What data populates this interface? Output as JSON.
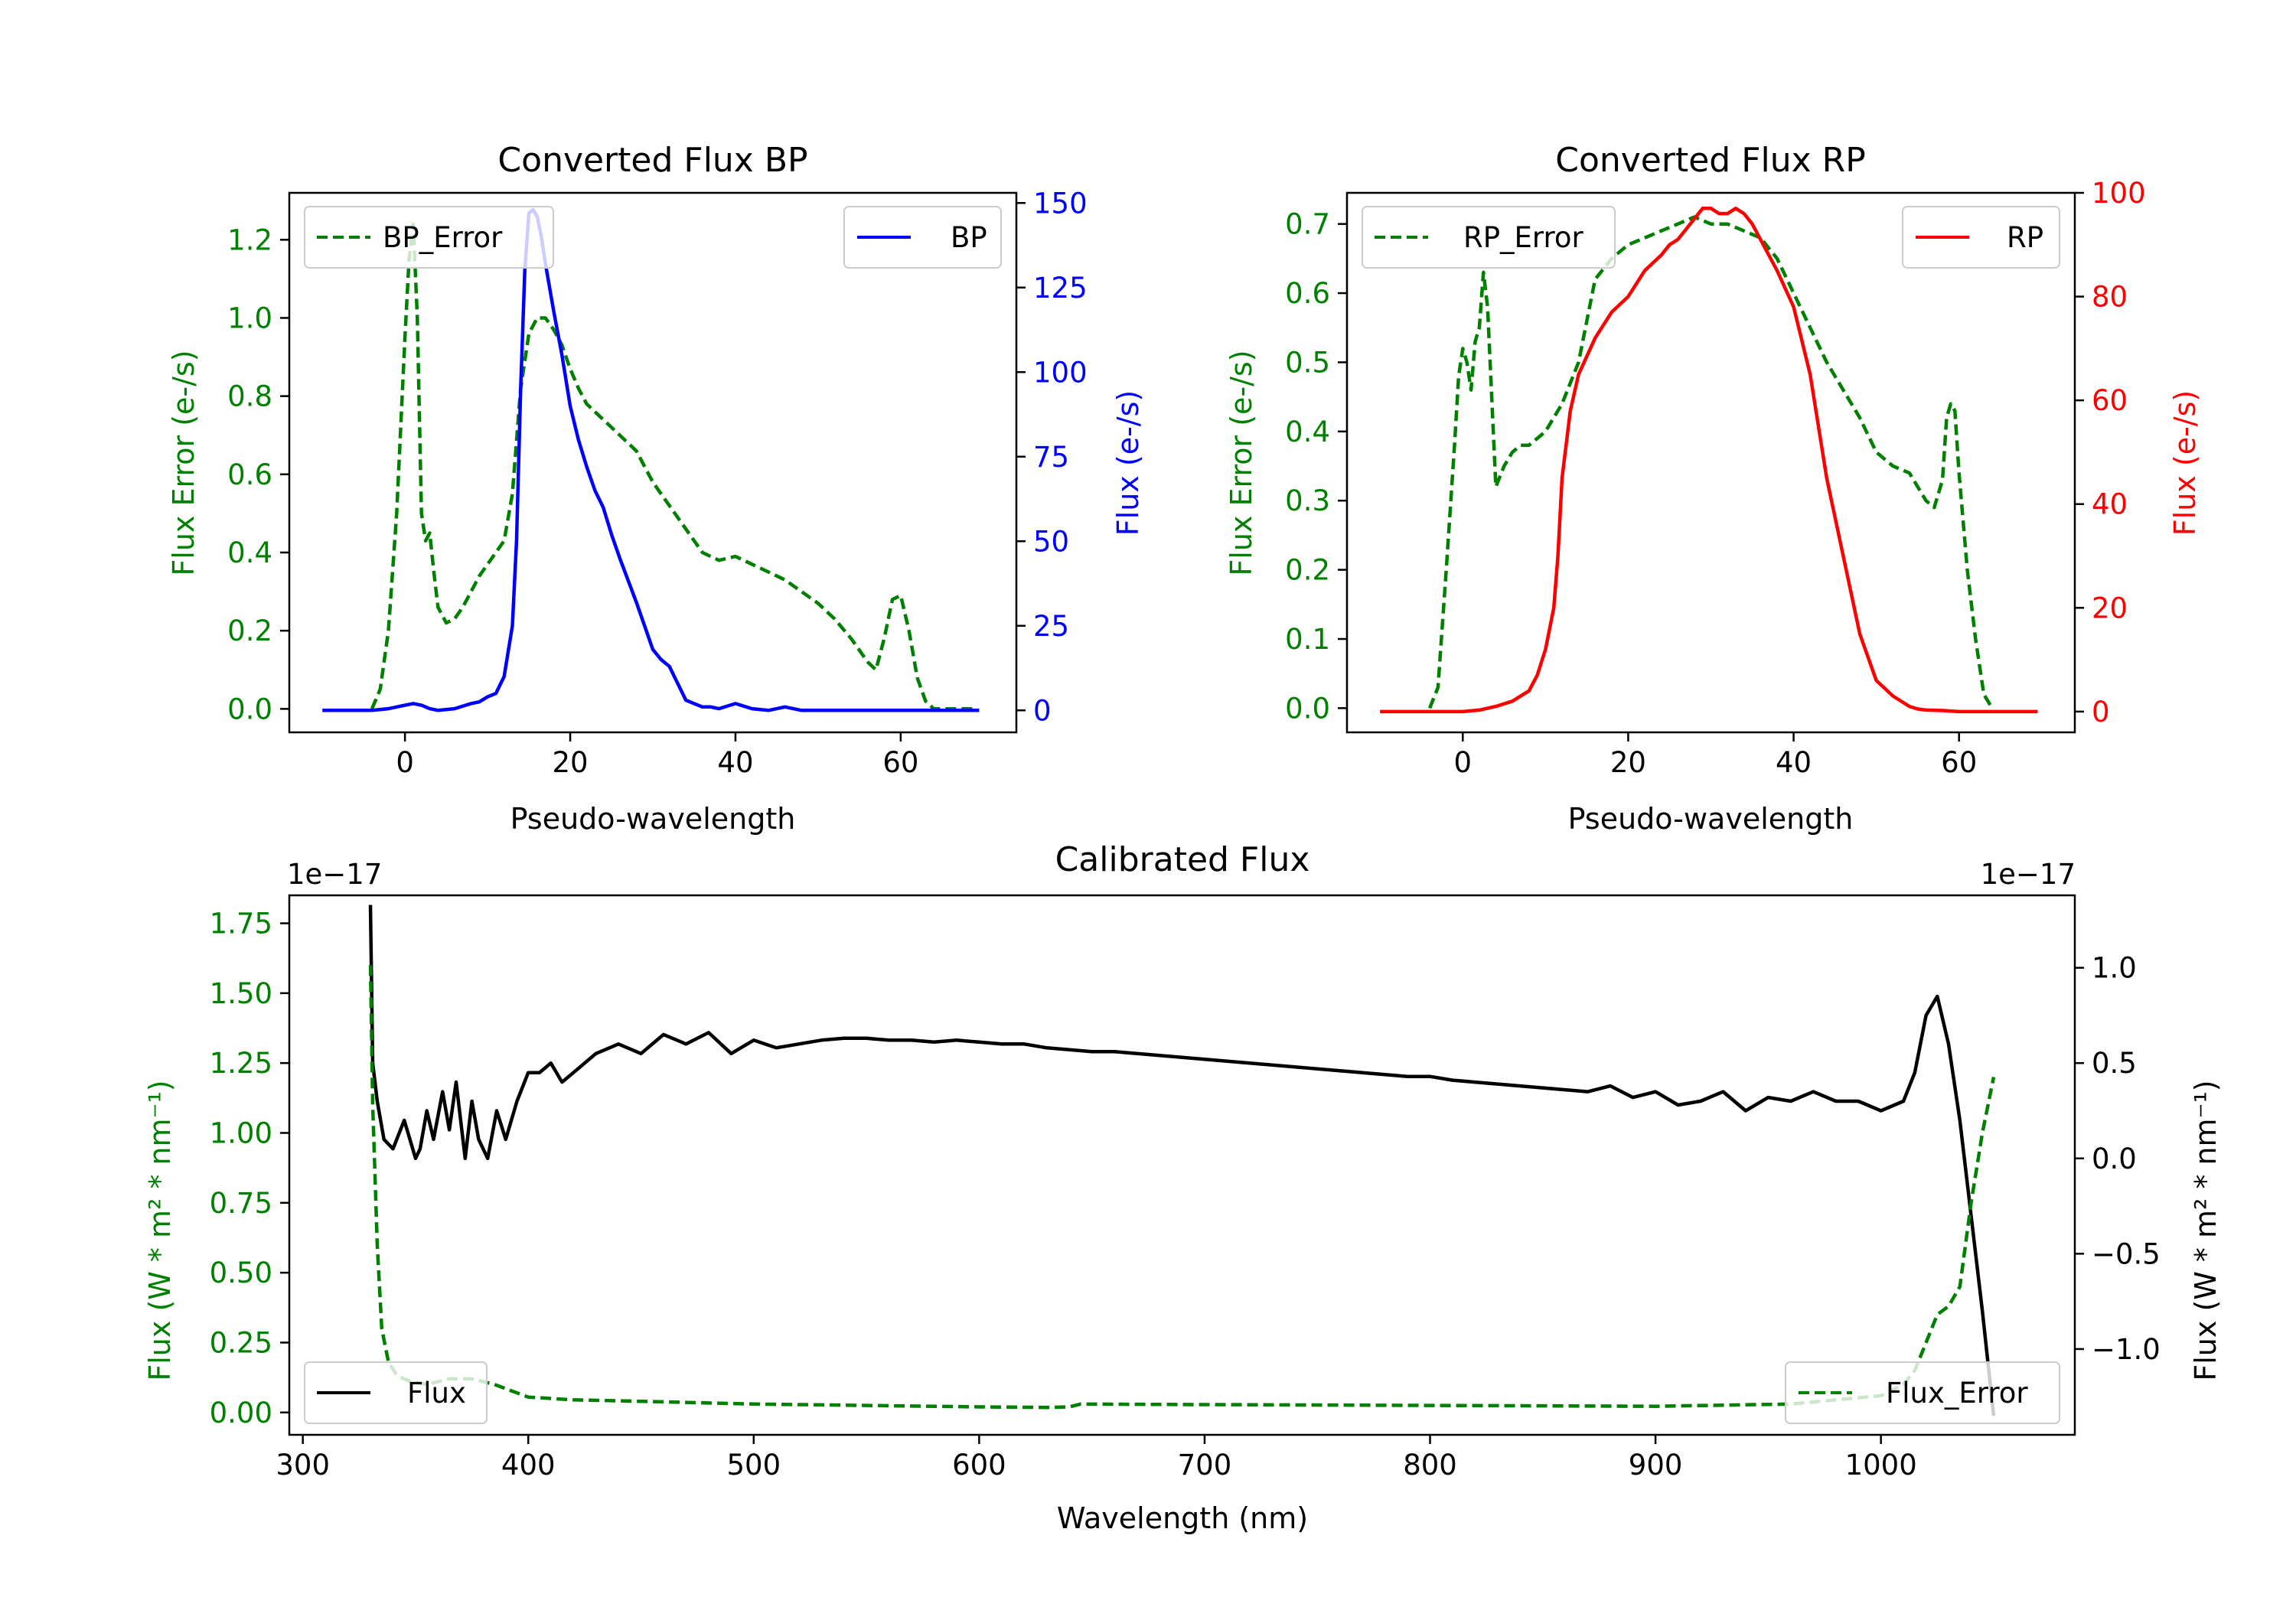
{
  "figure": {
    "background": "#ffffff"
  },
  "colors": {
    "error": "#008000",
    "bp": "#0000ff",
    "rp": "#ff0000",
    "flux": "#000000",
    "axis": "#000000"
  },
  "panels": {
    "bp": {
      "title": "Converted Flux BP",
      "xlabel": "Pseudo-wavelength",
      "ylabel_left": "Flux Error (e-/s)",
      "ylabel_right": "Flux (e-/s)",
      "legend_left": "BP_Error",
      "legend_right": "BP"
    },
    "rp": {
      "title": "Converted Flux RP",
      "xlabel": "Pseudo-wavelength",
      "ylabel_left": "Flux Error (e-/s)",
      "ylabel_right": "Flux (e-/s)",
      "legend_left": "RP_Error",
      "legend_right": "RP"
    },
    "cal": {
      "title": "Calibrated Flux",
      "xlabel": "Wavelength (nm)",
      "ylabel_left": "Flux (W * m² * nm⁻¹)",
      "ylabel_right": "Flux (W * m² * nm⁻¹)",
      "offset_left": "1e−17",
      "offset_right": "1e−17",
      "legend_left": "Flux",
      "legend_right": "Flux_Error"
    }
  },
  "chart_data": [
    {
      "type": "line",
      "id": "bp",
      "title": "Converted Flux BP",
      "xlabel": "Pseudo-wavelength",
      "ylabel": "Flux Error (e-/s)",
      "ylabel_right": "Flux (e-/s)",
      "xlim": [
        -14,
        74
      ],
      "ylim": [
        -0.06,
        1.32
      ],
      "ylim_right": [
        -6.5,
        153
      ],
      "xticks": [
        0,
        20,
        40,
        60
      ],
      "yticks": [
        0.0,
        0.2,
        0.4,
        0.6,
        0.8,
        1.0,
        1.2
      ],
      "yticks_right": [
        0,
        25,
        50,
        75,
        100,
        125,
        150
      ],
      "series": [
        {
          "name": "BP_Error",
          "axis": "left",
          "color": "#008000",
          "dashed": true,
          "x": [
            -4,
            -3,
            -2,
            -1,
            0,
            0.5,
            1,
            1.5,
            2,
            2.5,
            3,
            3.5,
            4,
            5,
            6,
            7,
            8,
            9,
            10,
            11,
            12,
            13,
            14,
            15,
            16,
            17,
            18,
            19,
            20,
            21,
            22,
            24,
            26,
            28,
            30,
            32,
            34,
            36,
            38,
            40,
            42,
            44,
            46,
            48,
            50,
            52,
            54,
            56,
            57,
            58,
            59,
            60,
            61,
            62,
            63,
            64,
            65,
            66,
            67,
            68,
            69
          ],
          "y": [
            0.0,
            0.05,
            0.2,
            0.5,
            0.95,
            1.15,
            1.24,
            1.0,
            0.5,
            0.43,
            0.45,
            0.35,
            0.26,
            0.22,
            0.23,
            0.26,
            0.3,
            0.34,
            0.37,
            0.4,
            0.43,
            0.55,
            0.82,
            0.96,
            1.0,
            1.0,
            0.97,
            0.93,
            0.87,
            0.82,
            0.78,
            0.74,
            0.7,
            0.66,
            0.58,
            0.52,
            0.46,
            0.4,
            0.38,
            0.39,
            0.37,
            0.35,
            0.33,
            0.3,
            0.27,
            0.23,
            0.18,
            0.12,
            0.1,
            0.18,
            0.28,
            0.29,
            0.2,
            0.08,
            0.02,
            0.0,
            0.0,
            0.0,
            0.0,
            0.0,
            0.0
          ]
        },
        {
          "name": "BP",
          "axis": "right",
          "color": "#0000ff",
          "dashed": false,
          "x": [
            -10,
            -6,
            -4,
            -2,
            0,
            1,
            2,
            3,
            4,
            6,
            8,
            9,
            10,
            11,
            12,
            13,
            13.5,
            14,
            14.5,
            15,
            15.5,
            16,
            16.5,
            17,
            18,
            19,
            20,
            21,
            22,
            23,
            24,
            25,
            26,
            28,
            30,
            31,
            32,
            33,
            34,
            35,
            36,
            37,
            38,
            40,
            42,
            44,
            46,
            48,
            50,
            55,
            60,
            65,
            69.5
          ],
          "y": [
            0,
            0,
            0,
            0.5,
            1.5,
            2,
            1.5,
            0.5,
            0,
            0.5,
            2,
            2.5,
            4,
            5,
            10,
            25,
            50,
            95,
            130,
            147,
            148,
            146,
            140,
            132,
            118,
            105,
            90,
            80,
            72,
            65,
            60,
            52,
            45,
            32,
            18,
            15,
            13,
            8,
            3,
            2,
            1,
            1,
            0.5,
            2,
            0.5,
            0,
            1,
            0,
            0,
            0,
            0,
            0,
            0
          ]
        }
      ]
    },
    {
      "type": "line",
      "id": "rp",
      "title": "Converted Flux RP",
      "xlabel": "Pseudo-wavelength",
      "ylabel": "Flux Error (e-/s)",
      "ylabel_right": "Flux (e-/s)",
      "xlim": [
        -14,
        74
      ],
      "ylim": [
        -0.035,
        0.745
      ],
      "ylim_right": [
        -4,
        100
      ],
      "xticks": [
        0,
        20,
        40,
        60
      ],
      "yticks": [
        0.0,
        0.1,
        0.2,
        0.3,
        0.4,
        0.5,
        0.6,
        0.7
      ],
      "yticks_right": [
        0,
        20,
        40,
        60,
        80,
        100
      ],
      "series": [
        {
          "name": "RP_Error",
          "axis": "left",
          "color": "#008000",
          "dashed": true,
          "x": [
            -4,
            -3,
            -2,
            -1,
            -0.5,
            0,
            0.5,
            1,
            1.5,
            2,
            2.5,
            3,
            3.5,
            4,
            5,
            6,
            7,
            8,
            9,
            10,
            12,
            14,
            16,
            18,
            20,
            22,
            24,
            26,
            28,
            30,
            32,
            34,
            36,
            38,
            40,
            42,
            44,
            46,
            48,
            50,
            52,
            54,
            55,
            56,
            57,
            58,
            58.5,
            59,
            59.5,
            60,
            61,
            62,
            63,
            63.5,
            64
          ],
          "y": [
            0.0,
            0.03,
            0.2,
            0.38,
            0.48,
            0.52,
            0.5,
            0.46,
            0.53,
            0.55,
            0.63,
            0.58,
            0.45,
            0.32,
            0.35,
            0.37,
            0.38,
            0.38,
            0.39,
            0.4,
            0.44,
            0.5,
            0.62,
            0.65,
            0.67,
            0.68,
            0.69,
            0.7,
            0.71,
            0.7,
            0.7,
            0.69,
            0.68,
            0.65,
            0.6,
            0.55,
            0.5,
            0.46,
            0.42,
            0.37,
            0.35,
            0.34,
            0.32,
            0.3,
            0.29,
            0.33,
            0.42,
            0.44,
            0.43,
            0.34,
            0.2,
            0.1,
            0.02,
            0.01,
            0.0
          ]
        },
        {
          "name": "RP",
          "axis": "right",
          "color": "#ff0000",
          "dashed": false,
          "x": [
            -10,
            -6,
            -4,
            -2,
            0,
            2,
            4,
            6,
            8,
            9,
            10,
            11,
            11.5,
            12,
            13,
            14,
            16,
            18,
            20,
            22,
            24,
            25,
            26,
            27,
            28,
            29,
            30,
            31,
            32,
            33,
            34,
            35,
            36,
            38,
            40,
            42,
            44,
            46,
            48,
            50,
            52,
            54,
            55,
            56,
            58,
            60,
            65,
            69.5
          ],
          "y": [
            0,
            0,
            0,
            0,
            0,
            0.3,
            1,
            2,
            4,
            7,
            12,
            20,
            30,
            45,
            58,
            65,
            72,
            77,
            80,
            85,
            88,
            90,
            91,
            93,
            95,
            97,
            97,
            96,
            96,
            97,
            96,
            94,
            91,
            85,
            78,
            65,
            45,
            30,
            15,
            6,
            3,
            1,
            0.5,
            0.3,
            0.2,
            0,
            0,
            0
          ]
        }
      ]
    },
    {
      "type": "line",
      "id": "cal",
      "title": "Calibrated Flux",
      "xlabel": "Wavelength (nm)",
      "ylabel": "Flux (W * m² * nm⁻¹)",
      "ylabel_right": "Flux (W * m² * nm⁻¹)",
      "offset_left": "1e−17",
      "offset_right": "1e−17",
      "xlim": [
        294,
        1086
      ],
      "ylim": [
        -0.08,
        1.85
      ],
      "ylim_right": [
        -1.45,
        1.38
      ],
      "xticks": [
        300,
        400,
        500,
        600,
        700,
        800,
        900,
        1000
      ],
      "yticks": [
        0.0,
        0.25,
        0.5,
        0.75,
        1.0,
        1.25,
        1.5,
        1.75
      ],
      "ytick_labels": [
        "0.00",
        "0.25",
        "0.50",
        "0.75",
        "1.00",
        "1.25",
        "1.50",
        "1.75"
      ],
      "yticks_right": [
        -1.0,
        -0.5,
        0.0,
        0.5,
        1.0
      ],
      "ytick_labels_right": [
        "−1.0",
        "−0.5",
        "0.0",
        "0.5",
        "1.0"
      ],
      "series": [
        {
          "name": "Flux",
          "axis": "right",
          "color": "#000000",
          "dashed": false,
          "x": [
            330,
            331,
            333,
            336,
            340,
            345,
            350,
            352,
            355,
            358,
            362,
            365,
            368,
            372,
            375,
            378,
            382,
            386,
            390,
            395,
            400,
            405,
            410,
            415,
            420,
            430,
            440,
            450,
            460,
            470,
            480,
            490,
            500,
            510,
            520,
            530,
            540,
            550,
            560,
            570,
            580,
            590,
            600,
            610,
            620,
            630,
            640,
            650,
            660,
            670,
            680,
            690,
            700,
            710,
            720,
            730,
            740,
            750,
            760,
            770,
            780,
            790,
            800,
            810,
            820,
            830,
            840,
            850,
            860,
            870,
            880,
            890,
            900,
            910,
            920,
            930,
            940,
            950,
            960,
            970,
            980,
            990,
            1000,
            1010,
            1015,
            1020,
            1025,
            1030,
            1035,
            1040,
            1045,
            1050
          ],
          "y": [
            1.33,
            0.5,
            0.3,
            0.1,
            0.05,
            0.2,
            0.0,
            0.05,
            0.25,
            0.1,
            0.35,
            0.15,
            0.4,
            0.0,
            0.3,
            0.1,
            0.0,
            0.25,
            0.1,
            0.3,
            0.45,
            0.45,
            0.5,
            0.4,
            0.45,
            0.55,
            0.6,
            0.55,
            0.65,
            0.6,
            0.66,
            0.55,
            0.62,
            0.58,
            0.6,
            0.62,
            0.63,
            0.63,
            0.62,
            0.62,
            0.61,
            0.62,
            0.61,
            0.6,
            0.6,
            0.58,
            0.57,
            0.56,
            0.56,
            0.55,
            0.54,
            0.53,
            0.52,
            0.51,
            0.5,
            0.49,
            0.48,
            0.47,
            0.46,
            0.45,
            0.44,
            0.43,
            0.43,
            0.41,
            0.4,
            0.39,
            0.38,
            0.37,
            0.36,
            0.35,
            0.38,
            0.32,
            0.35,
            0.28,
            0.3,
            0.35,
            0.25,
            0.32,
            0.3,
            0.35,
            0.3,
            0.3,
            0.25,
            0.3,
            0.45,
            0.75,
            0.85,
            0.6,
            0.2,
            -0.3,
            -0.8,
            -1.35
          ]
        },
        {
          "name": "Flux_Error",
          "axis": "left",
          "color": "#008000",
          "dashed": true,
          "x": [
            330,
            331,
            333,
            335,
            338,
            342,
            348,
            355,
            365,
            375,
            385,
            395,
            400,
            420,
            450,
            500,
            550,
            600,
            630,
            640,
            645,
            700,
            800,
            900,
            960,
            1000,
            1010,
            1015,
            1020,
            1025,
            1030,
            1035,
            1040,
            1045,
            1050
          ],
          "y": [
            1.6,
            1.1,
            0.6,
            0.3,
            0.18,
            0.13,
            0.11,
            0.1,
            0.12,
            0.12,
            0.1,
            0.07,
            0.055,
            0.045,
            0.04,
            0.03,
            0.025,
            0.02,
            0.018,
            0.02,
            0.03,
            0.028,
            0.025,
            0.022,
            0.03,
            0.06,
            0.1,
            0.15,
            0.25,
            0.35,
            0.38,
            0.45,
            0.75,
            1.0,
            1.2
          ]
        }
      ]
    }
  ]
}
